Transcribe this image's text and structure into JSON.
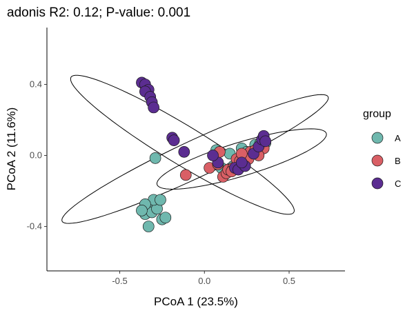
{
  "chart_data": {
    "type": "scatter",
    "title": "adonis R2: 0.12; P-value: 0.001",
    "xlabel": "PCoA 1 (23.5%)",
    "ylabel": "PCoA 2 (11.6%)",
    "xlim": [
      -0.93,
      0.83
    ],
    "ylim": [
      -0.65,
      0.72
    ],
    "xticks": [
      -0.5,
      0.0,
      0.5
    ],
    "xtick_labels": [
      "-0.5",
      "0.0",
      "0.5"
    ],
    "yticks": [
      -0.4,
      0.0,
      0.4
    ],
    "ytick_labels": [
      "-0.4",
      "0.0",
      "0.4"
    ],
    "grid": false,
    "legend": {
      "title": "group",
      "position": "right"
    },
    "series": [
      {
        "name": "A",
        "color": "#6FB8AE",
        "points": [
          [
            -0.29,
            -0.015
          ],
          [
            -0.33,
            -0.3
          ],
          [
            -0.36,
            -0.305
          ],
          [
            -0.35,
            -0.33
          ],
          [
            -0.31,
            -0.32
          ],
          [
            -0.28,
            -0.3
          ],
          [
            -0.25,
            -0.36
          ],
          [
            -0.23,
            -0.35
          ],
          [
            -0.3,
            -0.25
          ],
          [
            -0.35,
            -0.275
          ],
          [
            -0.33,
            -0.4
          ],
          [
            -0.26,
            -0.25
          ],
          [
            -0.37,
            -0.31
          ],
          [
            0.07,
            0.03
          ],
          [
            0.15,
            0.01
          ],
          [
            0.22,
            0.04
          ],
          [
            0.25,
            0.02
          ],
          [
            0.3,
            0.06
          ],
          [
            0.33,
            0.07
          ],
          [
            0.35,
            0.06
          ],
          [
            0.36,
            0.07
          ],
          [
            0.2,
            -0.05
          ],
          [
            0.17,
            -0.06
          ],
          [
            0.29,
            0.01
          ],
          [
            0.23,
            -0.01
          ],
          [
            0.1,
            -0.07
          ],
          [
            0.26,
            0.0
          ],
          [
            0.32,
            0.02
          ]
        ]
      },
      {
        "name": "B",
        "color": "#D95F65",
        "points": [
          [
            -0.11,
            -0.11
          ],
          [
            0.03,
            -0.07
          ],
          [
            0.08,
            -0.05
          ],
          [
            0.11,
            -0.12
          ],
          [
            0.13,
            -0.1
          ],
          [
            0.14,
            -0.08
          ],
          [
            0.17,
            -0.07
          ],
          [
            0.19,
            -0.02
          ],
          [
            0.21,
            -0.03
          ],
          [
            0.23,
            -0.05
          ],
          [
            0.24,
            0.0
          ],
          [
            0.27,
            0.02
          ],
          [
            0.3,
            0.03
          ],
          [
            0.33,
            0.05
          ],
          [
            0.35,
            0.04
          ],
          [
            0.09,
            0.02
          ],
          [
            0.16,
            -0.09
          ],
          [
            0.26,
            -0.02
          ],
          [
            0.22,
            0.01
          ],
          [
            0.32,
            0.0
          ]
        ]
      },
      {
        "name": "C",
        "color": "#5B2D91",
        "points": [
          [
            -0.37,
            0.41
          ],
          [
            -0.35,
            0.4
          ],
          [
            -0.33,
            0.37
          ],
          [
            -0.35,
            0.36
          ],
          [
            -0.32,
            0.33
          ],
          [
            -0.31,
            0.3
          ],
          [
            -0.3,
            0.27
          ],
          [
            -0.19,
            0.1
          ],
          [
            -0.18,
            0.085
          ],
          [
            -0.12,
            0.02
          ],
          [
            0.08,
            -0.04
          ],
          [
            0.05,
            0.0
          ],
          [
            0.18,
            -0.07
          ],
          [
            0.2,
            -0.08
          ],
          [
            0.24,
            -0.06
          ],
          [
            0.29,
            0.01
          ],
          [
            0.32,
            0.05
          ],
          [
            0.34,
            0.09
          ],
          [
            0.35,
            0.11
          ],
          [
            0.36,
            0.08
          ],
          [
            0.22,
            -0.04
          ]
        ]
      }
    ],
    "ellipses": [
      {
        "group": "A",
        "cx": -0.055,
        "cy": -0.02,
        "rx": 0.86,
        "ry": 0.105,
        "angle_deg": 24
      },
      {
        "group": "B",
        "cx": 0.22,
        "cy": -0.02,
        "rx": 0.52,
        "ry": 0.095,
        "angle_deg": 16
      },
      {
        "group": "C",
        "cx": -0.13,
        "cy": 0.06,
        "rx": 0.76,
        "ry": 0.11,
        "angle_deg": -30
      }
    ]
  }
}
